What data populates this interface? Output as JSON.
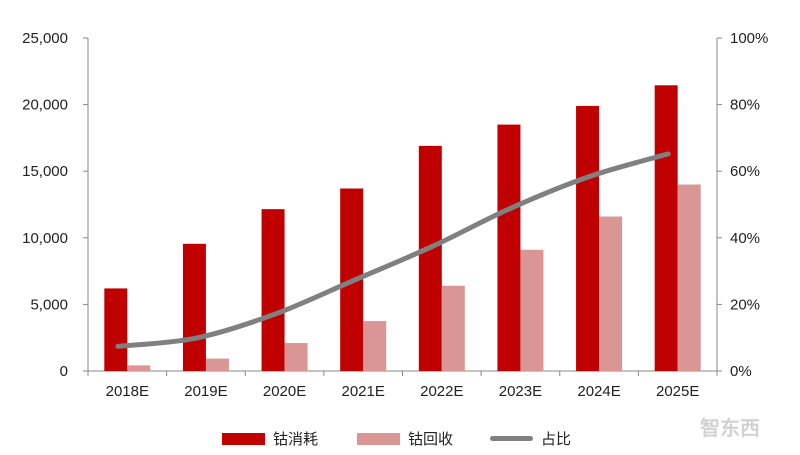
{
  "chart_data": {
    "type": "bar",
    "categories": [
      "2018E",
      "2019E",
      "2020E",
      "2021E",
      "2022E",
      "2023E",
      "2024E",
      "2025E"
    ],
    "series": [
      {
        "name": "钴消耗",
        "type": "bar",
        "axis": "left",
        "color": "#c00000",
        "values": [
          6200,
          9550,
          12150,
          13700,
          16900,
          18500,
          19900,
          21450
        ]
      },
      {
        "name": "钴回收",
        "type": "bar",
        "axis": "left",
        "color": "#d99694",
        "values": [
          420,
          930,
          2100,
          3750,
          6400,
          9100,
          11600,
          14000
        ]
      },
      {
        "name": "占比",
        "type": "line",
        "axis": "right",
        "color": "#808080",
        "smooth": true,
        "values": [
          7.4,
          9.9,
          17.1,
          27.2,
          37.4,
          48.9,
          58.4,
          65.2
        ]
      }
    ],
    "y_left": {
      "ylim": [
        0,
        25000
      ],
      "ticks": [
        "0",
        "5,000",
        "10,000",
        "15,000",
        "20,000",
        "25,000"
      ]
    },
    "y_right": {
      "ylim": [
        0,
        100
      ],
      "ticks": [
        "0%",
        "20%",
        "40%",
        "60%",
        "80%",
        "100%"
      ]
    },
    "grid": false,
    "legend": "bottom"
  },
  "watermark": "智东西"
}
